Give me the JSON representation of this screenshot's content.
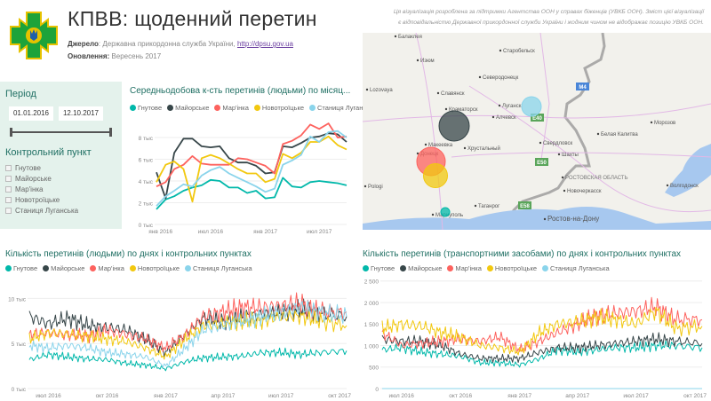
{
  "header": {
    "title": "КПВВ: щоденний перетин",
    "source_label": "Джерело",
    "source_text": ": Державна прикордонна служба України, ",
    "source_link": "http://dpsu.gov.ua",
    "update_label": "Оновлення:",
    "update_value": " Вересень 2017",
    "note_line1": "Ця візуалізація розроблена за підтримки Агентства ООН у справах біженців (УВКБ ООН). Зміст цієї візуалізації",
    "note_line2": "є відповідальністю Державної прикордонної служби України і жодним чином не відображає позицію УВКБ ООН."
  },
  "logo": {
    "colors": [
      "#1da33a",
      "#e6c200",
      "#1f5fa8"
    ]
  },
  "slicer": {
    "period_label": "Період",
    "date_from": "01.01.2016",
    "date_to": "12.10.2017",
    "range_fraction": [
      0,
      1
    ],
    "checkpoint_label": "Контрольний пункт",
    "checkpoints": [
      "Гнутове",
      "Майорське",
      "Мар'інка",
      "Новотроїцьке",
      "Станиця Луганська"
    ]
  },
  "colors": {
    "Гнутове": "#01b8aa",
    "Майорське": "#374649",
    "Мар'інка": "#fd625e",
    "Новотроїцьке": "#f2c80f",
    "Станиця Луганська": "#8ad4eb",
    "accent": "#1f6f63"
  },
  "map": {
    "labels": [
      "Балаклея",
      "Изюм",
      "Старобельск",
      "Северодонецк",
      "Lozovaya",
      "Славянск",
      "Луганск",
      "Краматорск",
      "Алчевск",
      "Морозов",
      "Белая Калитва",
      "Макеевка",
      "Хрустальный",
      "Свердловск",
      "Донецк",
      "Шахты",
      "РОСТОВСКАЯ ОБЛАСТЬ",
      "Волгодонск",
      "Pologi",
      "Новочеркасск",
      "Таганрог",
      "Мариуполь",
      "Ростов-на-Дону"
    ],
    "road_shields": [
      "M4",
      "E40",
      "E50",
      "E58"
    ],
    "bubbles": [
      {
        "name": "Майорське",
        "size": 8000
      },
      {
        "name": "Мар'інка",
        "size": 8100
      },
      {
        "name": "Новотроїцьке",
        "size": 6900
      },
      {
        "name": "Станиця Луганська",
        "size": 8000
      },
      {
        "name": "Гнутове",
        "size": 3600
      }
    ]
  },
  "chart_data": [
    {
      "type": "line",
      "title": "Середньодобова к-сть перетинів (людьми) по місяц...",
      "legend": [
        "Гнутове",
        "Майорське",
        "Мар'інка",
        "Новотроїцьке",
        "Станиця Луганс..."
      ],
      "legend_placement": "top-left",
      "x": [
        "2016-01",
        "2016-02",
        "2016-03",
        "2016-04",
        "2016-05",
        "2016-06",
        "2016-07",
        "2016-08",
        "2016-09",
        "2016-10",
        "2016-11",
        "2016-12",
        "2017-01",
        "2017-02",
        "2017-03",
        "2017-04",
        "2017-05",
        "2017-06",
        "2017-07",
        "2017-08",
        "2017-09",
        "2017-10"
      ],
      "x_ticks": [
        "янв 2016",
        "июл 2016",
        "янв 2017",
        "июл 2017"
      ],
      "y_ticks": [
        "0 тыс",
        "2 тыс",
        "4 тыс",
        "6 тыс",
        "8 тыс"
      ],
      "ylim": [
        0,
        10000
      ],
      "grid": true,
      "series": [
        {
          "name": "Гнутове",
          "values": [
            1400,
            2300,
            2600,
            3100,
            3400,
            3600,
            4100,
            4000,
            3400,
            3400,
            2900,
            3100,
            2400,
            2500,
            4300,
            3500,
            3400,
            3900,
            4000,
            3900,
            3800,
            3600
          ]
        },
        {
          "name": "Майорське",
          "values": [
            4800,
            2400,
            6600,
            7900,
            7900,
            7200,
            7100,
            7200,
            6100,
            5700,
            5700,
            5400,
            4700,
            4800,
            7200,
            7100,
            7500,
            8000,
            8100,
            8400,
            8300,
            7600
          ]
        },
        {
          "name": "Мар'інка",
          "values": [
            3500,
            3900,
            5100,
            5500,
            6300,
            5600,
            5500,
            5500,
            5500,
            6100,
            6000,
            5700,
            5400,
            4700,
            7400,
            7700,
            8200,
            9200,
            8800,
            9300,
            8000,
            8100
          ]
        },
        {
          "name": "Новотроїцьке",
          "values": [
            3900,
            5500,
            5800,
            5100,
            2100,
            6100,
            6400,
            6100,
            5600,
            5100,
            4700,
            4700,
            3900,
            4200,
            6500,
            6100,
            6600,
            7600,
            7600,
            8100,
            7300,
            6900
          ]
        },
        {
          "name": "Станиця Луганська",
          "values": [
            1700,
            2600,
            3100,
            3700,
            3500,
            4500,
            5000,
            5300,
            4700,
            4300,
            3900,
            3500,
            3000,
            3300,
            5500,
            5900,
            6400,
            8100,
            7600,
            8500,
            8600,
            8000
          ]
        }
      ]
    },
    {
      "type": "line",
      "title": "Кількість перетинів (людьми) по днях і контрольних пунктах",
      "legend": [
        "Гнутове",
        "Майорське",
        "Мар'інка",
        "Новотроїцьке",
        "Станиця Луганська"
      ],
      "legend_placement": "top-left",
      "x": [
        "2016-06-01",
        "2016-07-01",
        "2016-08-01",
        "2016-09-01",
        "2016-10-01",
        "2016-11-01",
        "2016-12-01",
        "2017-01-01",
        "2017-02-01",
        "2017-03-01",
        "2017-04-01",
        "2017-05-01",
        "2017-06-01",
        "2017-07-01",
        "2017-08-01",
        "2017-09-01",
        "2017-10-12"
      ],
      "x_ticks": [
        "июл 2016",
        "окт 2016",
        "янв 2017",
        "апр 2017",
        "июл 2017",
        "окт 2017"
      ],
      "y_ticks": [
        "0 тыс",
        "5 тыс",
        "10 тыс"
      ],
      "ylim": [
        0,
        12000
      ],
      "grid": true,
      "series": [
        {
          "name": "Гнутове",
          "values": [
            3200,
            3800,
            3500,
            3300,
            3200,
            2800,
            2600,
            2200,
            3000,
            3400,
            3500,
            3600,
            4000,
            4000,
            3800,
            4000,
            4200
          ]
        },
        {
          "name": "Майорське",
          "values": [
            8000,
            7200,
            7800,
            7000,
            6800,
            6500,
            5500,
            4000,
            6000,
            7800,
            7500,
            8000,
            8200,
            8500,
            8800,
            8300,
            8000
          ]
        },
        {
          "name": "Мар'інка",
          "values": [
            6000,
            6200,
            6000,
            5800,
            6500,
            6000,
            5500,
            4500,
            6000,
            8000,
            8500,
            9000,
            9000,
            9200,
            9500,
            8500,
            8500
          ]
        },
        {
          "name": "Новотроїцьке",
          "values": [
            5500,
            6200,
            6000,
            5800,
            5500,
            5200,
            4500,
            3500,
            5500,
            7000,
            7200,
            7500,
            7500,
            8000,
            8000,
            7500,
            7000
          ]
        },
        {
          "name": "Станиця Луганська",
          "values": [
            4800,
            4500,
            4800,
            4500,
            4000,
            3800,
            3500,
            2500,
            4500,
            6500,
            7000,
            7500,
            8000,
            8500,
            9000,
            8500,
            8000
          ]
        }
      ]
    },
    {
      "type": "line",
      "title": "Кількість перетинів (транспортними засобами) по днях і контрольних пунктах",
      "legend": [
        "Гнутове",
        "Майорське",
        "Мар'інка",
        "Новотроїцьке",
        "Станиця Луганська"
      ],
      "legend_placement": "top-left",
      "x": [
        "2016-06-01",
        "2016-07-01",
        "2016-08-01",
        "2016-09-01",
        "2016-10-01",
        "2016-11-01",
        "2016-12-01",
        "2017-01-01",
        "2017-02-01",
        "2017-03-01",
        "2017-04-01",
        "2017-05-01",
        "2017-06-01",
        "2017-07-01",
        "2017-08-01",
        "2017-09-01",
        "2017-10-12"
      ],
      "x_ticks": [
        "июл 2016",
        "окт 2016",
        "янв 2017",
        "апр 2017",
        "июл 2017",
        "окт 2017"
      ],
      "y_ticks": [
        "0",
        "500",
        "1 000",
        "1 500",
        "2 000",
        "2 500"
      ],
      "ylim": [
        0,
        2500
      ],
      "grid": true,
      "series": [
        {
          "name": "Гнутове",
          "values": [
            900,
            950,
            850,
            800,
            750,
            600,
            600,
            550,
            700,
            900,
            850,
            900,
            950,
            950,
            1000,
            1000,
            950
          ]
        },
        {
          "name": "Майорське",
          "values": [
            1150,
            1100,
            1100,
            1000,
            800,
            700,
            700,
            700,
            850,
            950,
            950,
            1000,
            1050,
            1100,
            1150,
            1100,
            1050
          ]
        },
        {
          "name": "Мар'інка",
          "values": [
            1300,
            1000,
            1050,
            1100,
            1150,
            1100,
            1200,
            900,
            1100,
            1300,
            1500,
            1700,
            1750,
            1800,
            1900,
            1600,
            1600
          ]
        },
        {
          "name": "Новотроїцьке",
          "values": [
            1400,
            1500,
            1450,
            1300,
            1200,
            1000,
            950,
            850,
            1300,
            1500,
            1550,
            1650,
            1600,
            1500,
            1800,
            1400,
            1450
          ]
        },
        {
          "name": "Станиця Луганська",
          "values": [
            0,
            0,
            0,
            0,
            0,
            0,
            0,
            0,
            0,
            0,
            0,
            0,
            0,
            0,
            0,
            0,
            0
          ]
        }
      ]
    }
  ]
}
